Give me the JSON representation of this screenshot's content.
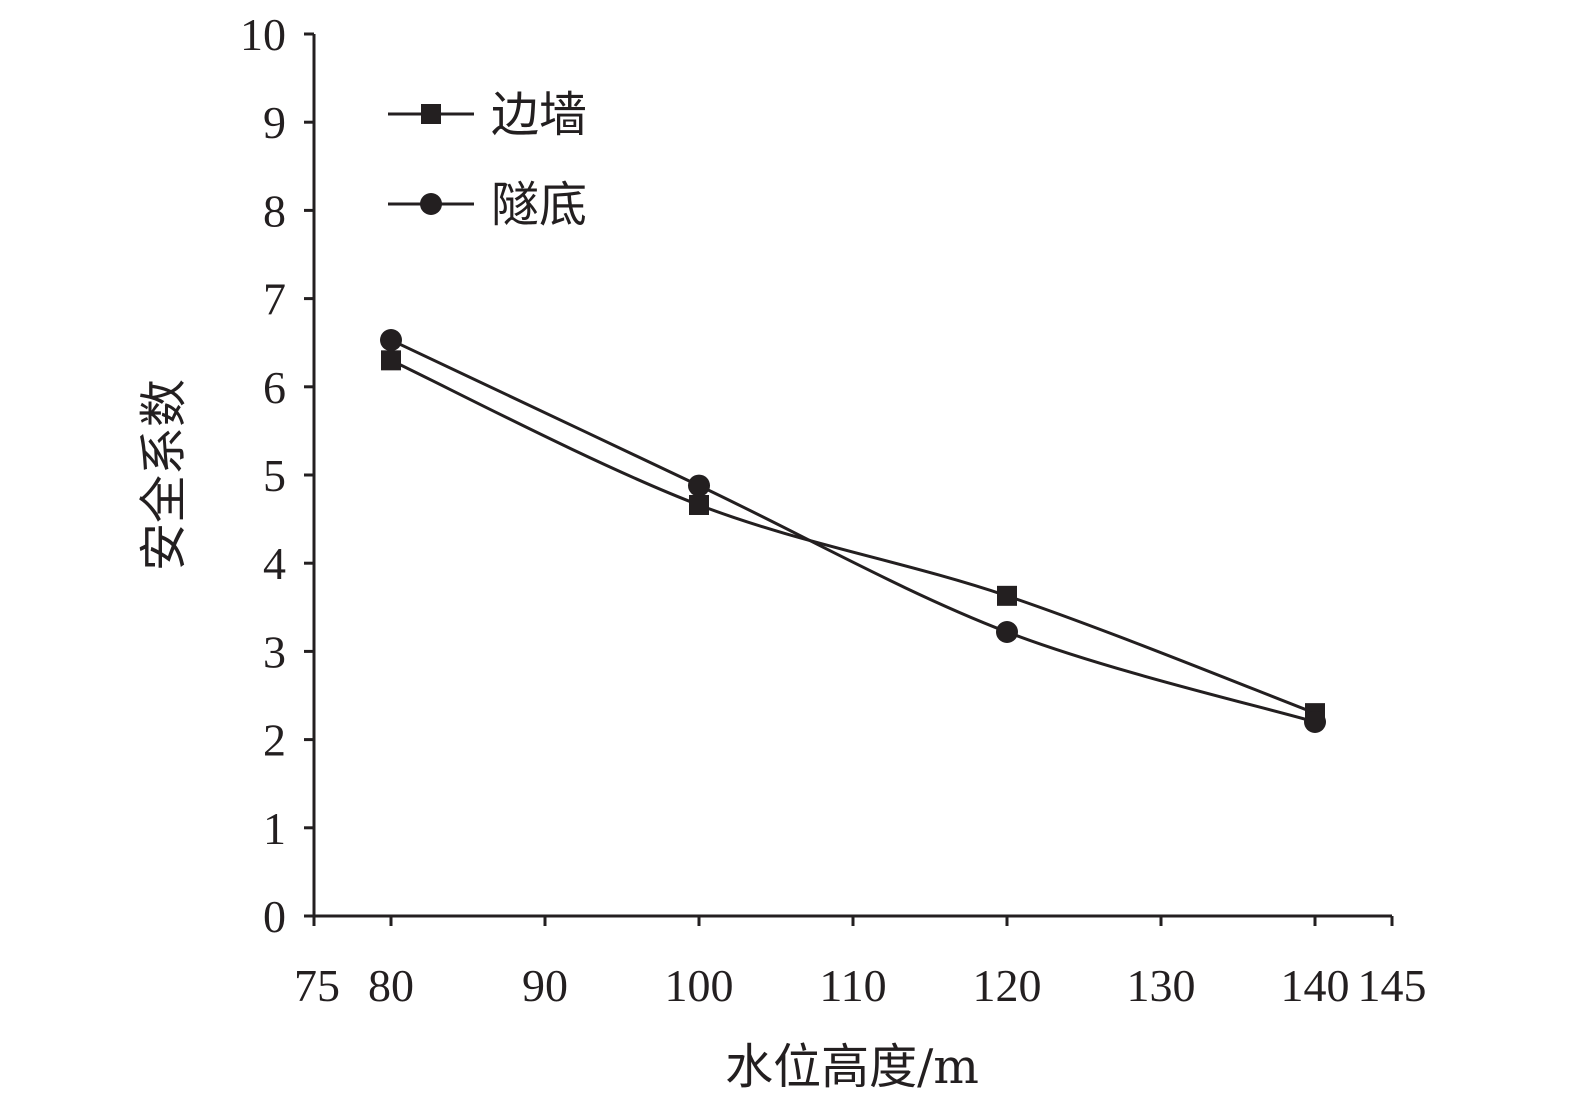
{
  "colors": {
    "ink": "#231f20",
    "background": "#ffffff"
  },
  "chart_data": {
    "type": "line",
    "smoothed": true,
    "title": "",
    "xlabel": "水位高度/m",
    "ylabel": "安全系数",
    "xlim": [
      75,
      145
    ],
    "ylim": [
      0,
      10
    ],
    "x_ticks": [
      75,
      80,
      90,
      100,
      110,
      120,
      130,
      140,
      145
    ],
    "y_ticks": [
      0,
      1,
      2,
      3,
      4,
      5,
      6,
      7,
      8,
      9,
      10
    ],
    "grid": false,
    "legend_position": "top-left",
    "x": [
      80,
      100,
      120,
      140
    ],
    "series": [
      {
        "name": "边墙",
        "marker": "square",
        "values": [
          6.3,
          4.66,
          3.63,
          2.3
        ]
      },
      {
        "name": "隧底",
        "marker": "circle",
        "values": [
          6.53,
          4.88,
          3.22,
          2.2
        ]
      }
    ]
  }
}
